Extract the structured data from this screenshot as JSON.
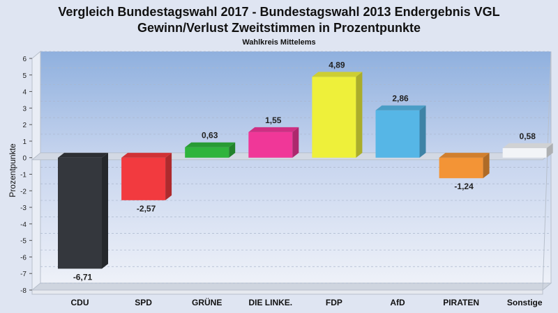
{
  "chart_data": {
    "type": "bar",
    "title": "Vergleich Bundestagswahl 2017 - Bundestagswahl 2013 Endergebnis VGL",
    "subtitle_line": "Gewinn/Verlust Zweitstimmen in Prozentpunkte",
    "subtitle": "Wahlkreis Mittelems",
    "ylabel": "Prozentpunkte",
    "ylim": [
      -8,
      6
    ],
    "yticks": [
      "6",
      "5",
      "4",
      "3",
      "2",
      "1",
      "0",
      "-1",
      "-2",
      "-3",
      "-4",
      "-5",
      "-6",
      "-7",
      "-8"
    ],
    "grid": true,
    "categories": [
      "CDU",
      "SPD",
      "GRÜNE",
      "DIE LINKE.",
      "FDP",
      "AfD",
      "PIRATEN",
      "Sonstige"
    ],
    "values": [
      -6.71,
      -2.57,
      0.63,
      1.55,
      4.89,
      2.86,
      -1.24,
      0.58
    ],
    "value_labels": [
      "-6,71",
      "-2,57",
      "0,63",
      "1,55",
      "4,89",
      "2,86",
      "-1,24",
      "0,58"
    ],
    "colors": [
      "#34373d",
      "#f23a3f",
      "#2fb43c",
      "#f03798",
      "#eef03a",
      "#56b6e6",
      "#f39436",
      "#f2f4f7"
    ]
  }
}
